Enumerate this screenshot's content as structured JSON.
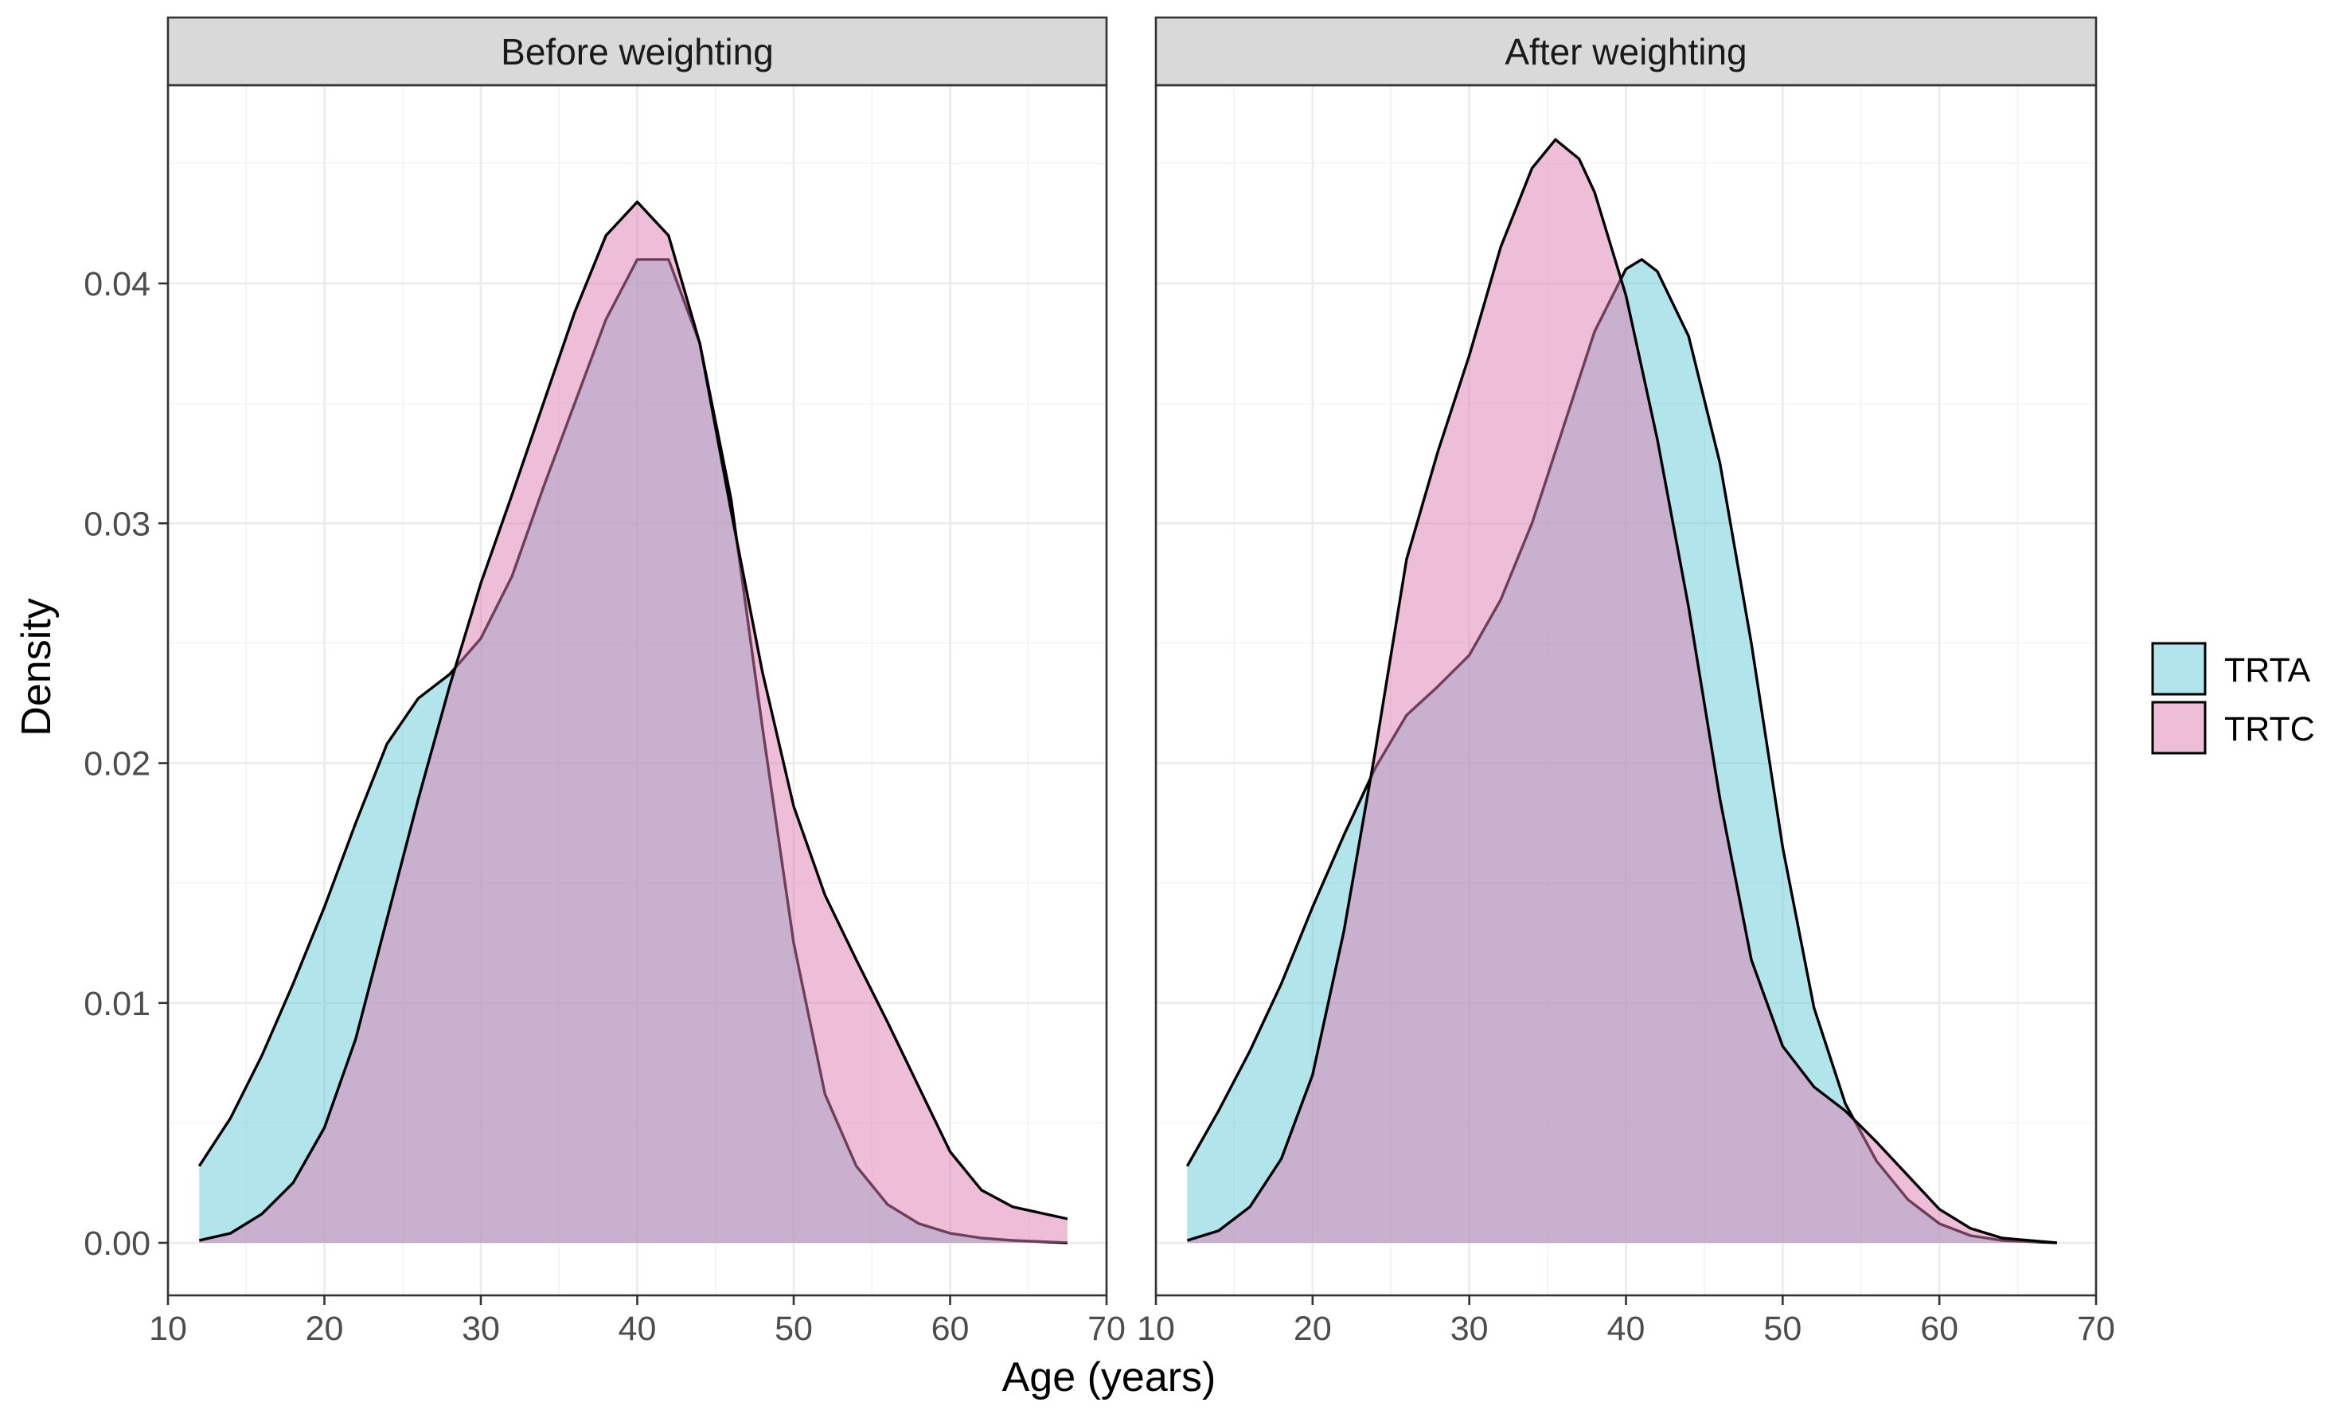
{
  "chart_data": {
    "type": "area",
    "subtype": "density",
    "xlabel": "Age (years)",
    "ylabel": "Density",
    "xlim": [
      10,
      70
    ],
    "ylim": [
      0,
      0.046
    ],
    "x_ticks": [
      10,
      20,
      30,
      40,
      50,
      60,
      70
    ],
    "y_ticks": [
      0.0,
      0.01,
      0.02,
      0.03,
      0.04
    ],
    "x_tick_labels": [
      "10",
      "20",
      "30",
      "40",
      "50",
      "60",
      "70"
    ],
    "y_tick_labels": [
      "0.00",
      "0.01",
      "0.02",
      "0.03",
      "0.04"
    ],
    "grid": true,
    "legend_position": "right",
    "legend": [
      {
        "label": "TRTA",
        "color": "#66C9DA"
      },
      {
        "label": "TRTC",
        "color": "#DE7BAF"
      }
    ],
    "panels": [
      {
        "title": "Before weighting",
        "series": [
          {
            "name": "TRTA",
            "color": "#66C9DA",
            "x": [
              12,
              14,
              16,
              18,
              20,
              22,
              24,
              26,
              28,
              30,
              32,
              34,
              36,
              38,
              40,
              42,
              44,
              46,
              48,
              50,
              52,
              54,
              56,
              58,
              60,
              62,
              64,
              67.5
            ],
            "y": [
              0.0032,
              0.0052,
              0.0078,
              0.0108,
              0.014,
              0.0175,
              0.0208,
              0.0227,
              0.0237,
              0.0252,
              0.0278,
              0.0315,
              0.035,
              0.0385,
              0.041,
              0.041,
              0.0375,
              0.031,
              0.0215,
              0.0125,
              0.0062,
              0.0032,
              0.0016,
              0.0008,
              0.0004,
              0.0002,
              0.0001,
              0.0
            ]
          },
          {
            "name": "TRTC",
            "color": "#DE7BAF",
            "x": [
              12,
              14,
              16,
              18,
              20,
              22,
              24,
              26,
              28,
              30,
              32,
              34,
              36,
              38,
              40,
              42,
              44,
              46,
              48,
              50,
              52,
              54,
              56,
              58,
              60,
              62,
              64,
              67.5
            ],
            "y": [
              0.0001,
              0.0004,
              0.0012,
              0.0025,
              0.0048,
              0.0085,
              0.0135,
              0.0185,
              0.0232,
              0.0275,
              0.0312,
              0.035,
              0.0388,
              0.042,
              0.0434,
              0.042,
              0.0375,
              0.0305,
              0.0238,
              0.0182,
              0.0145,
              0.0118,
              0.0092,
              0.0065,
              0.0038,
              0.0022,
              0.0015,
              0.001
            ]
          }
        ]
      },
      {
        "title": "After weighting",
        "series": [
          {
            "name": "TRTA",
            "color": "#66C9DA",
            "x": [
              12,
              14,
              16,
              18,
              20,
              22,
              24,
              26,
              28,
              30,
              32,
              34,
              36,
              38,
              40,
              41,
              42,
              44,
              46,
              48,
              50,
              52,
              54,
              56,
              58,
              60,
              62,
              64,
              67.5
            ],
            "y": [
              0.0032,
              0.0055,
              0.008,
              0.0108,
              0.014,
              0.017,
              0.0198,
              0.022,
              0.0232,
              0.0245,
              0.0268,
              0.03,
              0.034,
              0.038,
              0.0406,
              0.041,
              0.0405,
              0.0378,
              0.0325,
              0.025,
              0.0165,
              0.0098,
              0.0058,
              0.0034,
              0.0018,
              0.0008,
              0.0003,
              0.0001,
              0.0
            ]
          },
          {
            "name": "TRTC",
            "color": "#DE7BAF",
            "x": [
              12,
              14,
              16,
              18,
              20,
              22,
              24,
              26,
              28,
              30,
              32,
              34,
              35.5,
              37,
              38,
              40,
              42,
              44,
              46,
              48,
              50,
              52,
              54,
              56,
              58,
              60,
              62,
              64,
              67.5
            ],
            "y": [
              0.0001,
              0.0005,
              0.0015,
              0.0035,
              0.007,
              0.013,
              0.0205,
              0.0285,
              0.033,
              0.037,
              0.0415,
              0.0448,
              0.046,
              0.0452,
              0.0438,
              0.0395,
              0.0335,
              0.0265,
              0.0185,
              0.0118,
              0.0082,
              0.0065,
              0.0055,
              0.0042,
              0.0028,
              0.0014,
              0.0006,
              0.0002,
              0.0
            ]
          }
        ]
      }
    ]
  }
}
